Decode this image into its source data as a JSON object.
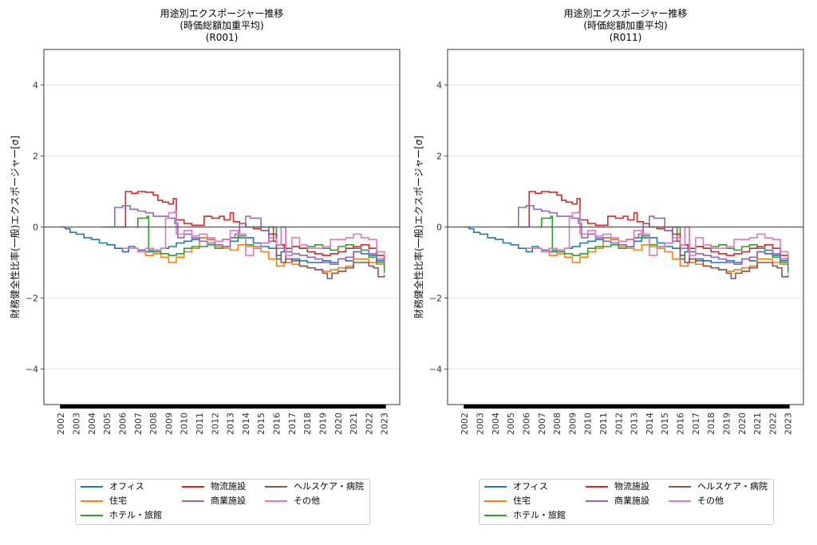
{
  "chart_data": [
    {
      "type": "line",
      "title": [
        "用途別エクスポージャー推移",
        "(時価総額加重平均)",
        "(R001)"
      ],
      "xlabel": "",
      "ylabel": "財務健全性比率(一般)エクスポージャー[σ]",
      "ylim": [
        -5,
        5
      ],
      "xlim": [
        2000.9,
        2024.0
      ],
      "yticks": [
        -4,
        -2,
        0,
        2,
        4
      ],
      "ytick_labels": [
        "−4",
        "−2",
        "0",
        "2",
        "4"
      ],
      "xticks": [
        "2002",
        "2003",
        "2004",
        "2005",
        "2006",
        "2007",
        "2008",
        "2009",
        "2010",
        "2011",
        "2012",
        "2013",
        "2014",
        "2015",
        "2016",
        "2017",
        "2018",
        "2019",
        "2020",
        "2021",
        "2022",
        "2023"
      ],
      "grid": "horizontal",
      "zero_line": true,
      "legend_position": "below",
      "series": [
        {
          "name": "オフィス",
          "color": "#1f77b4",
          "x": [
            2002.0,
            2002.3,
            2002.6,
            2003.0,
            2003.5,
            2004.0,
            2004.5,
            2005.0,
            2005.5,
            2006.0,
            2006.4,
            2006.8,
            2007.0,
            2007.5,
            2008.0,
            2008.5,
            2009.0,
            2009.5,
            2010.0,
            2010.5,
            2011.0,
            2011.5,
            2012.0,
            2012.5,
            2013.0,
            2013.5,
            2014.0,
            2014.5,
            2015.0,
            2015.5,
            2016.0,
            2016.3,
            2016.6,
            2017.0,
            2017.5,
            2018.0,
            2018.5,
            2019.0,
            2019.5,
            2020.0,
            2020.5,
            2021.0,
            2021.5,
            2022.0,
            2022.5,
            2023.0
          ],
          "y": [
            0.0,
            -0.05,
            -0.15,
            -0.2,
            -0.3,
            -0.35,
            -0.45,
            -0.5,
            -0.6,
            -0.7,
            -0.55,
            -0.6,
            -0.65,
            -0.7,
            -0.65,
            -0.6,
            -0.55,
            -0.45,
            -0.4,
            -0.35,
            -0.3,
            -0.35,
            -0.4,
            -0.35,
            -0.4,
            -0.3,
            -0.3,
            -0.45,
            -0.55,
            -0.6,
            -0.9,
            -0.7,
            -1.0,
            -0.9,
            -0.95,
            -1.0,
            -1.0,
            -0.95,
            -1.0,
            -0.9,
            -0.95,
            -0.7,
            -0.75,
            -0.8,
            -0.95,
            -1.1
          ]
        },
        {
          "name": "住宅",
          "color": "#ff7f0e",
          "x": [
            2007.0,
            2007.5,
            2008.0,
            2008.5,
            2009.0,
            2009.5,
            2010.0,
            2010.5,
            2011.0,
            2011.5,
            2012.0,
            2012.5,
            2013.0,
            2013.5,
            2014.0,
            2014.5,
            2015.0,
            2015.5,
            2016.0,
            2016.5,
            2017.0,
            2017.5,
            2018.0,
            2018.5,
            2019.0,
            2019.5,
            2020.0,
            2020.5,
            2021.0,
            2021.5,
            2022.0,
            2022.5,
            2023.0
          ],
          "y": [
            -0.7,
            -0.8,
            -0.75,
            -0.85,
            -1.0,
            -0.85,
            -0.7,
            -0.6,
            -0.3,
            -0.35,
            -0.55,
            -0.6,
            -0.65,
            -0.5,
            -0.55,
            -0.6,
            -0.7,
            -0.9,
            -1.1,
            -1.0,
            -1.05,
            -1.1,
            -1.15,
            -1.2,
            -1.25,
            -1.2,
            -1.15,
            -1.1,
            -0.9,
            -0.9,
            -1.0,
            -1.05,
            -1.1
          ]
        },
        {
          "name": "ホテル・旅館",
          "color": "#2ca02c",
          "x": [
            2006.8,
            2007.0,
            2007.6,
            2007.7,
            2008.0,
            2008.5,
            2009.0,
            2009.5,
            2010.0,
            2010.5,
            2011.0,
            2011.5,
            2012.0,
            2012.5,
            2013.0,
            2013.5,
            2014.0,
            2014.5,
            2015.0,
            2015.5,
            2016.0,
            2016.3,
            2016.6,
            2017.0,
            2017.5,
            2018.0,
            2018.5,
            2019.0,
            2019.5,
            2020.0,
            2020.5,
            2021.0,
            2021.5,
            2022.0,
            2022.5,
            2023.0
          ],
          "y": [
            0.0,
            0.25,
            0.3,
            -0.65,
            -0.7,
            -0.75,
            -0.8,
            -0.75,
            -0.6,
            -0.55,
            -0.55,
            -0.5,
            -0.6,
            -0.55,
            -0.3,
            -0.25,
            -0.5,
            -0.55,
            -0.45,
            0.0,
            -0.5,
            0.0,
            -0.7,
            -0.55,
            -0.6,
            -0.55,
            -0.5,
            -0.6,
            -0.65,
            -0.55,
            -0.5,
            -0.6,
            -0.65,
            -0.85,
            -1.0,
            -1.3
          ]
        },
        {
          "name": "物流施設",
          "color": "#d62728",
          "x": [
            2005.6,
            2006.1,
            2006.2,
            2006.6,
            2007.0,
            2007.5,
            2008.0,
            2008.3,
            2008.6,
            2009.0,
            2009.3,
            2009.5,
            2010.0,
            2010.5,
            2011.0,
            2011.3,
            2011.8,
            2012.3,
            2012.6,
            2013.0,
            2013.2,
            2013.6,
            2014.0,
            2014.5,
            2015.0,
            2015.5,
            2016.0,
            2016.5,
            2017.0,
            2017.5,
            2018.0,
            2018.5,
            2019.0,
            2019.5,
            2020.0,
            2020.5,
            2021.0,
            2021.5,
            2022.0,
            2022.5,
            2023.0
          ],
          "y": [
            0.0,
            0.0,
            1.0,
            0.95,
            1.0,
            0.98,
            0.9,
            0.75,
            0.7,
            0.65,
            0.8,
            0.2,
            0.1,
            0.05,
            0.05,
            0.3,
            0.25,
            0.3,
            0.2,
            0.4,
            0.15,
            0.1,
            0.0,
            -0.05,
            -0.1,
            -0.2,
            -0.5,
            -0.6,
            -0.55,
            -0.6,
            -0.7,
            -0.75,
            -0.8,
            -0.75,
            -0.7,
            -0.6,
            -0.55,
            -0.5,
            -0.6,
            -0.8,
            -0.95
          ]
        },
        {
          "name": "商業施設",
          "color": "#9467bd",
          "x": [
            2004.7,
            2005.3,
            2005.5,
            2006.0,
            2006.5,
            2007.0,
            2007.5,
            2008.0,
            2008.5,
            2009.0,
            2009.4,
            2009.6,
            2010.0,
            2010.5,
            2011.0,
            2011.5,
            2012.0,
            2012.5,
            2013.0,
            2013.3,
            2013.6,
            2014.0,
            2014.3,
            2015.0,
            2015.5,
            2016.0,
            2016.5,
            2017.0,
            2017.5,
            2018.0,
            2018.5,
            2019.0,
            2019.5,
            2020.0,
            2020.5,
            2021.0,
            2021.5,
            2022.0,
            2022.5,
            2023.0
          ],
          "y": [
            0.0,
            0.0,
            0.55,
            0.6,
            0.5,
            0.45,
            0.4,
            0.3,
            0.3,
            0.25,
            0.1,
            -0.3,
            -0.2,
            -0.3,
            -0.4,
            -0.45,
            -0.5,
            -0.55,
            -0.3,
            -0.2,
            0.1,
            0.3,
            0.25,
            -0.1,
            -0.4,
            -0.6,
            -0.7,
            -0.75,
            -0.8,
            -0.85,
            -0.9,
            -1.0,
            -1.05,
            -0.9,
            -0.85,
            -0.7,
            -0.65,
            -0.75,
            -0.9,
            -1.05
          ]
        },
        {
          "name": "ヘルスケア・病院",
          "color": "#8c564b",
          "x": [
            2014.5,
            2015.0,
            2015.5,
            2015.8,
            2016.0,
            2016.3,
            2016.6,
            2017.0,
            2017.5,
            2018.0,
            2018.5,
            2019.0,
            2019.3,
            2019.6,
            2020.0,
            2020.5,
            2021.0,
            2021.5,
            2022.0,
            2022.3,
            2022.6,
            2023.0
          ],
          "y": [
            0.0,
            0.0,
            0.0,
            -0.4,
            -0.8,
            -1.0,
            -0.9,
            -0.95,
            -1.1,
            -1.15,
            -1.2,
            -1.3,
            -1.45,
            -1.3,
            -1.25,
            -1.15,
            -1.0,
            -1.0,
            -1.1,
            -1.15,
            -1.4,
            -1.35
          ]
        },
        {
          "name": "その他",
          "color": "#e377c2",
          "x": [
            2006.0,
            2006.9,
            2007.0,
            2007.5,
            2008.0,
            2008.5,
            2008.8,
            2009.0,
            2009.4,
            2009.5,
            2010.0,
            2010.5,
            2011.0,
            2011.5,
            2012.0,
            2012.5,
            2013.0,
            2013.5,
            2014.0,
            2014.5,
            2015.0,
            2015.5,
            2016.0,
            2016.3,
            2016.6,
            2017.0,
            2017.5,
            2018.0,
            2018.5,
            2019.0,
            2019.5,
            2020.0,
            2020.5,
            2021.0,
            2021.5,
            2022.0,
            2022.5,
            2023.0
          ],
          "y": [
            -0.6,
            -0.6,
            -0.7,
            -0.6,
            -0.65,
            -0.6,
            0.25,
            0.4,
            0.45,
            -0.2,
            -0.1,
            -0.25,
            -0.2,
            -0.3,
            -0.4,
            -0.35,
            -0.1,
            -0.2,
            -0.8,
            -0.55,
            -0.45,
            -0.3,
            -0.5,
            0.0,
            -0.8,
            -0.3,
            -0.5,
            -0.6,
            -0.6,
            -0.55,
            -0.35,
            -0.35,
            -0.3,
            -0.2,
            -0.3,
            -0.35,
            -0.7,
            -0.85
          ]
        }
      ]
    },
    {
      "type": "line",
      "title": [
        "用途別エクスポージャー推移",
        "(時価総額加重平均)",
        "(R011)"
      ],
      "xlabel": "",
      "ylabel": "財務健全性比率(一般)エクスポージャー[σ]",
      "ylim": [
        -5,
        5
      ],
      "xlim": [
        2000.9,
        2024.0
      ],
      "yticks": [
        -4,
        -2,
        0,
        2,
        4
      ],
      "ytick_labels": [
        "−4",
        "−2",
        "0",
        "2",
        "4"
      ],
      "xticks": [
        "2002",
        "2003",
        "2004",
        "2005",
        "2006",
        "2007",
        "2008",
        "2009",
        "2010",
        "2011",
        "2012",
        "2013",
        "2014",
        "2015",
        "2016",
        "2017",
        "2018",
        "2019",
        "2020",
        "2021",
        "2022",
        "2023"
      ],
      "grid": "horizontal",
      "zero_line": true,
      "legend_position": "below",
      "series_same_as_first": true
    }
  ],
  "legend": {
    "items": [
      {
        "label": "オフィス",
        "color": "#1f77b4"
      },
      {
        "label": "住宅",
        "color": "#ff7f0e"
      },
      {
        "label": "ホテル・旅館",
        "color": "#2ca02c"
      },
      {
        "label": "物流施設",
        "color": "#d62728"
      },
      {
        "label": "商業施設",
        "color": "#9467bd"
      },
      {
        "label": "ヘルスケア・病院",
        "color": "#8c564b"
      },
      {
        "label": "その他",
        "color": "#e377c2"
      }
    ]
  }
}
